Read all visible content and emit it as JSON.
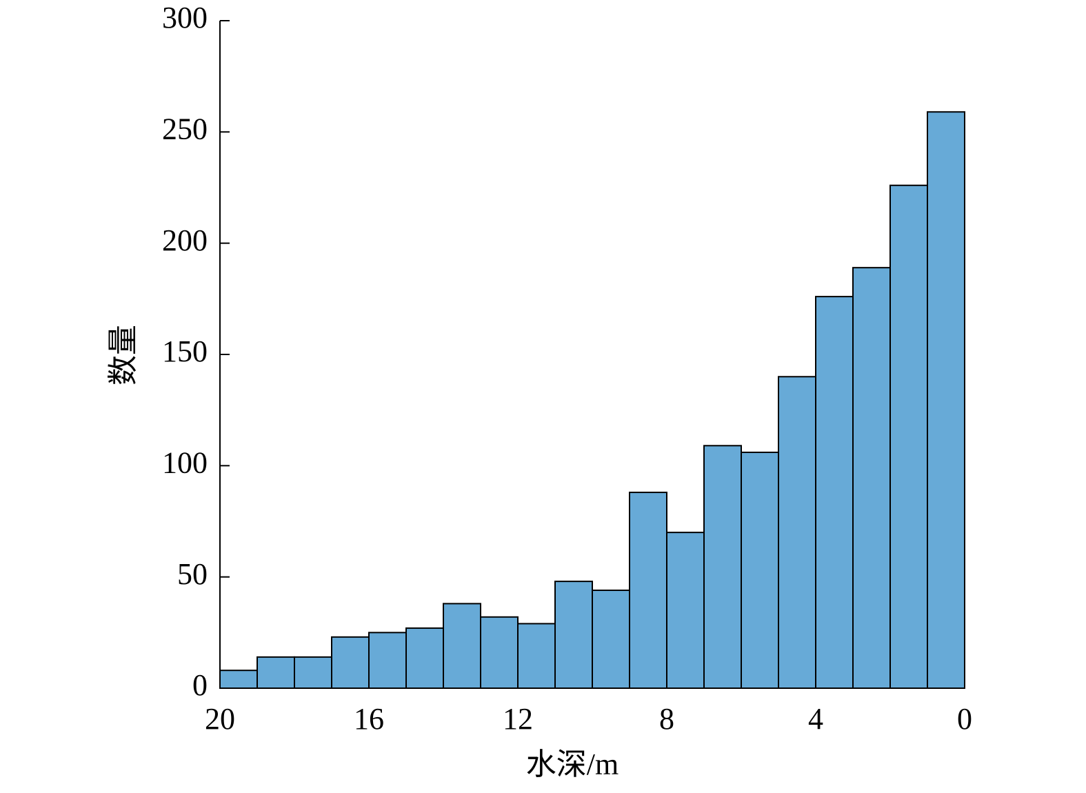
{
  "chart_data": {
    "type": "histogram",
    "bins": [
      20,
      19,
      18,
      17,
      16,
      15,
      14,
      13,
      12,
      11,
      10,
      9,
      8,
      7,
      6,
      5,
      4,
      3,
      2,
      1,
      0
    ],
    "values": [
      8,
      14,
      14,
      23,
      25,
      27,
      38,
      32,
      29,
      48,
      44,
      88,
      70,
      109,
      106,
      140,
      176,
      189,
      226,
      259
    ],
    "color": "#67aad7",
    "xlabel": "水深/m",
    "ylabel": "数量",
    "xlim": [
      20,
      0
    ],
    "xticks": [
      20,
      16,
      12,
      8,
      4,
      0
    ],
    "ylim": [
      0,
      300
    ],
    "yticks": [
      0,
      50,
      100,
      150,
      200,
      250,
      300
    ]
  }
}
